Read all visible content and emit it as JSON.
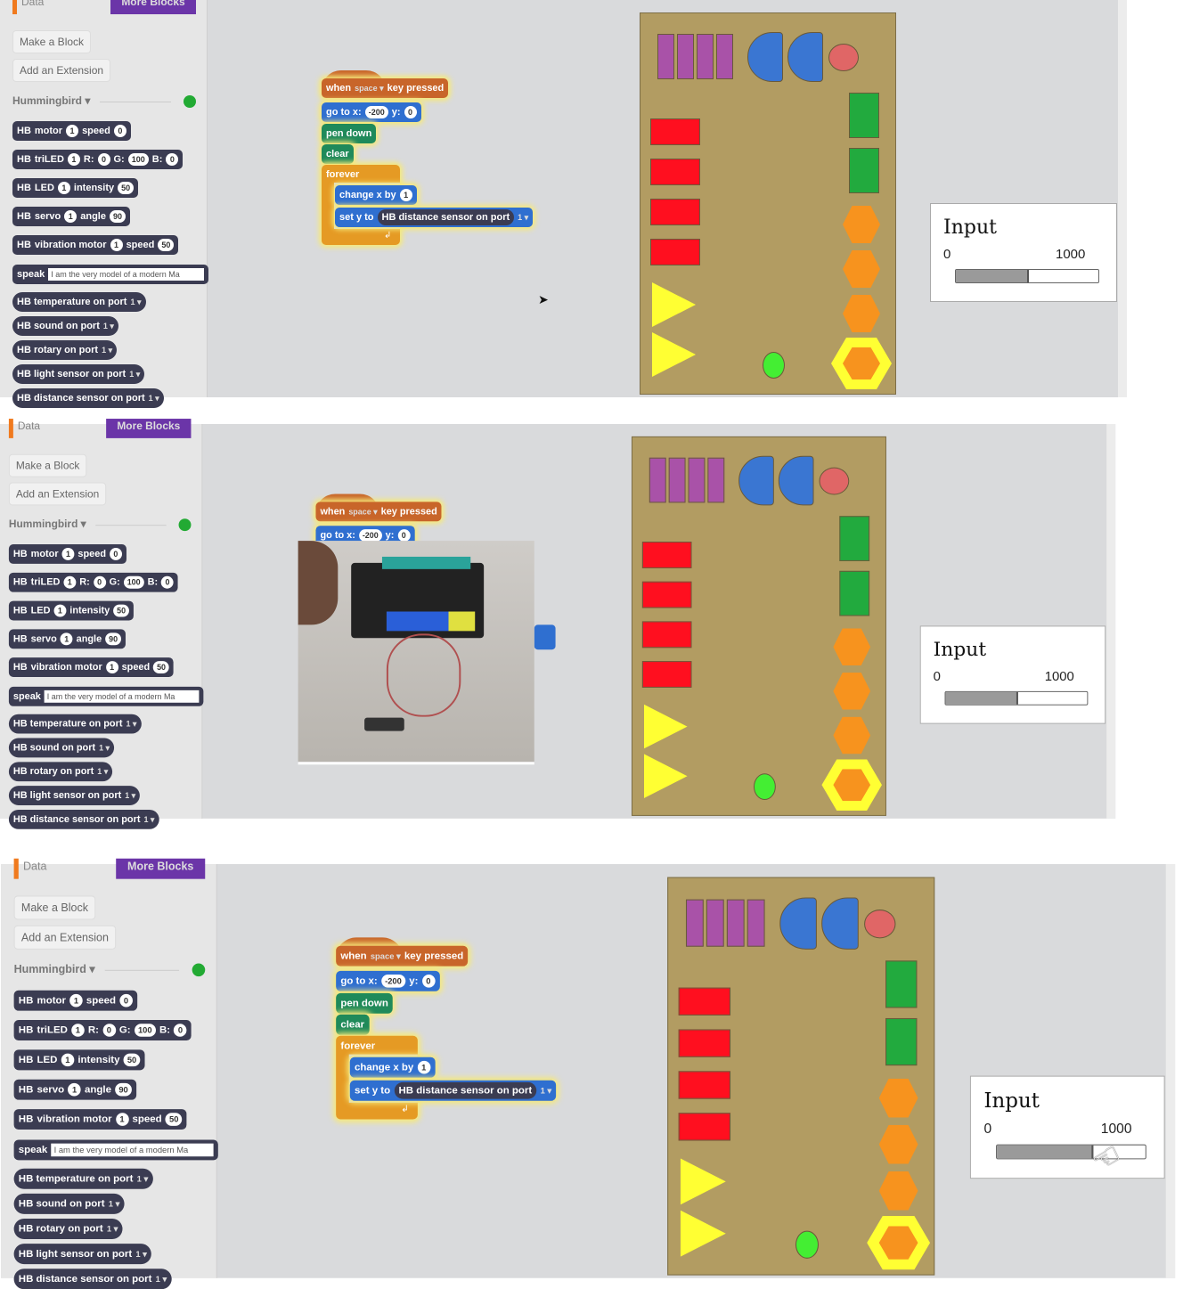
{
  "palette": {
    "category_label": "Data",
    "more_blocks_label": "More Blocks",
    "make_block_label": "Make a Block",
    "add_extension_label": "Add an Extension",
    "library_label": "Hummingbird ▾",
    "status_color": "#22aa33",
    "blocks": [
      {
        "kind": "command",
        "parts": [
          {
            "t": "HB"
          },
          {
            "t": "motor"
          },
          {
            "s": "1"
          },
          {
            "t": "speed"
          },
          {
            "s": "0"
          }
        ]
      },
      {
        "kind": "command",
        "parts": [
          {
            "t": "HB"
          },
          {
            "t": "triLED"
          },
          {
            "s": "1"
          },
          {
            "t": "R:"
          },
          {
            "s": "0"
          },
          {
            "t": "G:"
          },
          {
            "s": "100"
          },
          {
            "t": "B:"
          },
          {
            "s": "0"
          }
        ]
      },
      {
        "kind": "command",
        "parts": [
          {
            "t": "HB"
          },
          {
            "t": "LED"
          },
          {
            "s": "1"
          },
          {
            "t": "intensity"
          },
          {
            "s": "50"
          }
        ]
      },
      {
        "kind": "command",
        "parts": [
          {
            "t": "HB"
          },
          {
            "t": "servo"
          },
          {
            "s": "1"
          },
          {
            "t": "angle"
          },
          {
            "s": "90"
          }
        ]
      },
      {
        "kind": "command",
        "parts": [
          {
            "t": "HB"
          },
          {
            "t": "vibration motor"
          },
          {
            "s": "1"
          },
          {
            "t": "speed"
          },
          {
            "s": "50"
          }
        ]
      },
      {
        "kind": "command",
        "parts": [
          {
            "t": "speak"
          },
          {
            "x": "I am the very model of a modern Ma"
          }
        ]
      },
      {
        "kind": "reporter",
        "parts": [
          {
            "t": "HB temperature on port"
          },
          {
            "d": "1 ▾"
          }
        ]
      },
      {
        "kind": "reporter",
        "parts": [
          {
            "t": "HB sound on port"
          },
          {
            "d": "1 ▾"
          }
        ]
      },
      {
        "kind": "reporter",
        "parts": [
          {
            "t": "HB rotary on port"
          },
          {
            "d": "1 ▾"
          }
        ]
      },
      {
        "kind": "reporter",
        "parts": [
          {
            "t": "HB light sensor on port"
          },
          {
            "d": "1 ▾"
          }
        ]
      },
      {
        "kind": "reporter",
        "parts": [
          {
            "t": "HB distance sensor on port"
          },
          {
            "d": "1 ▾"
          }
        ]
      }
    ]
  },
  "script": [
    {
      "kind": "hat",
      "color": "#c8652a",
      "parts": [
        {
          "t": "when"
        },
        {
          "d": "space ▾"
        },
        {
          "t": "key pressed"
        }
      ]
    },
    {
      "kind": "command",
      "color": "#2f6fd0",
      "parts": [
        {
          "t": "go to x:"
        },
        {
          "s": "-200"
        },
        {
          "t": "y:"
        },
        {
          "s": "0"
        }
      ]
    },
    {
      "kind": "command",
      "color": "#1f8a5a",
      "parts": [
        {
          "t": "pen down"
        }
      ]
    },
    {
      "kind": "command",
      "color": "#1f8a5a",
      "parts": [
        {
          "t": "clear"
        }
      ]
    },
    {
      "kind": "c",
      "color": "#e59a24",
      "parts": [
        {
          "t": "forever"
        }
      ]
    },
    {
      "kind": "command",
      "color": "#2f6fd0",
      "parts": [
        {
          "t": "change x by"
        },
        {
          "s": "1"
        }
      ]
    },
    {
      "kind": "command",
      "color": "#2f6fd0",
      "parts": [
        {
          "t": "set y to"
        },
        {
          "r": "HB distance sensor on port"
        },
        {
          "d": "1 ▾"
        }
      ]
    }
  ],
  "stage": {
    "background": "#b29c62",
    "colors": {
      "purple": "#a952a8",
      "blue": "#3a76d2",
      "pink": "#e06666",
      "red": "#ff0f1f",
      "green": "#22aa3e",
      "orange": "#f7931e",
      "yellow": "#ffff33",
      "lime": "#44ee33"
    }
  },
  "watcher": {
    "label": "Input",
    "min": "0",
    "max": "1000"
  },
  "panels": [
    {
      "slider_value_fraction": 0.51,
      "video_overlay": false,
      "cursor": "arrow"
    },
    {
      "slider_value_fraction": 0.51,
      "video_overlay": true,
      "cursor": "none"
    },
    {
      "slider_value_fraction": 0.65,
      "video_overlay": false,
      "cursor": "hand"
    }
  ]
}
